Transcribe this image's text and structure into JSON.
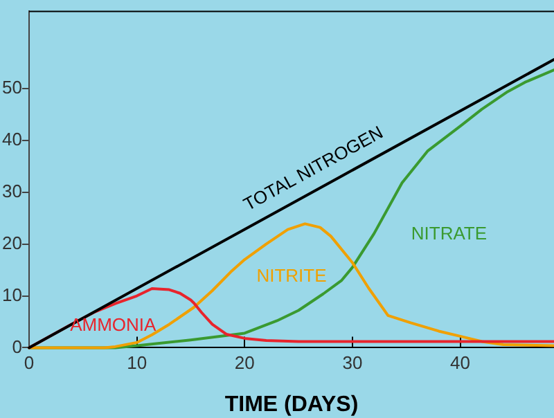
{
  "chart_data": {
    "type": "line",
    "xlabel": "TIME (DAYS)",
    "xlim": [
      0,
      48.7
    ],
    "xticks": [
      0,
      10,
      20,
      30,
      40
    ],
    "ylim": [
      0,
      65
    ],
    "yticks": [
      0,
      10,
      20,
      30,
      40,
      50
    ],
    "grid": false,
    "legend": false,
    "marker": "none",
    "line_style": "solid",
    "series": [
      {
        "name": "TOTAL NITROGEN",
        "color": "#000000",
        "x": [
          0,
          48.7
        ],
        "values": [
          0,
          55.6
        ]
      },
      {
        "name": "AMMONIA",
        "color": "#e8242c",
        "x": [
          0,
          4,
          6,
          8,
          10,
          11.4,
          13,
          14,
          15,
          15.3,
          16,
          17,
          18.3,
          20,
          22,
          25,
          30,
          40,
          48.7
        ],
        "values": [
          0,
          4.6,
          6.8,
          8.5,
          10,
          11.4,
          11.2,
          10.5,
          9.2,
          8.6,
          6.8,
          4.5,
          2.6,
          1.8,
          1.4,
          1.2,
          1.2,
          1.2,
          1.2
        ]
      },
      {
        "name": "NITRITE",
        "color": "#f0a000",
        "x": [
          0,
          7,
          8,
          10,
          11.4,
          13,
          15.3,
          17,
          18.7,
          20,
          22,
          24,
          25.6,
          27,
          28,
          30,
          31.5,
          33.3,
          35.4,
          38,
          40,
          42,
          44,
          48.7
        ],
        "values": [
          0,
          0,
          0.2,
          1,
          2.5,
          4.5,
          7.8,
          11,
          14.6,
          17,
          20,
          22.8,
          23.9,
          23.2,
          21.5,
          16.4,
          11.5,
          6.2,
          4.8,
          3.2,
          2.2,
          1.2,
          0.6,
          0.4
        ]
      },
      {
        "name": "NITRATE",
        "color": "#3a9a30",
        "x": [
          0,
          8,
          10,
          15,
          20,
          23,
          25,
          27.3,
          29,
          30,
          32,
          34.6,
          37,
          40.1,
          42,
          44.4,
          46,
          48.7
        ],
        "values": [
          0,
          0,
          0.4,
          1.5,
          2.8,
          5.2,
          7.2,
          10.4,
          13,
          15.5,
          22,
          31.8,
          38,
          42.9,
          46,
          49.4,
          51.2,
          53.6
        ]
      }
    ]
  }
}
